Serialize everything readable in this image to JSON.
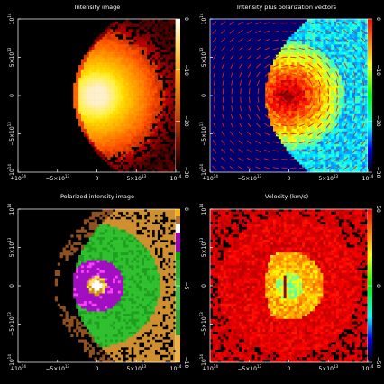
{
  "chart_data": [
    {
      "type": "heatmap",
      "title": "Intensity image",
      "colormap": "hot",
      "colorbar": {
        "ticks": [
          0,
          -10,
          -20,
          -30
        ],
        "labels": [
          "0",
          "−10",
          "−20",
          "−30"
        ],
        "range": [
          -30,
          0
        ]
      },
      "xticks": [
        -100000000000000.0,
        -50000000000000.0,
        0,
        50000000000000.0,
        100000000000000.0
      ],
      "yticks": [
        -100000000000000.0,
        -50000000000000.0,
        0,
        50000000000000.0,
        100000000000000.0
      ],
      "xlim": [
        -100000000000000.0,
        100000000000000.0
      ],
      "ylim": [
        -100000000000000.0,
        100000000000000.0
      ]
    },
    {
      "type": "heatmap",
      "title": "Intensity plus polarization vectors",
      "colormap": "jet",
      "overlay": "polarization vectors",
      "colorbar": {
        "ticks": [
          0,
          -10,
          -20,
          -30
        ],
        "labels": [
          "0",
          "−10",
          "−20",
          "−30"
        ],
        "range": [
          -30,
          0
        ]
      },
      "xticks": [
        -100000000000000.0,
        -50000000000000.0,
        0,
        50000000000000.0,
        100000000000000.0
      ],
      "yticks": [
        -100000000000000.0,
        -50000000000000.0,
        0,
        50000000000000.0,
        100000000000000.0
      ],
      "xlim": [
        -100000000000000.0,
        100000000000000.0
      ],
      "ylim": [
        -100000000000000.0,
        100000000000000.0
      ]
    },
    {
      "type": "heatmap",
      "title": "Polarized intensity image",
      "colormap": "discrete",
      "colorbar": {
        "ticks": [
          0,
          -5,
          -10
        ],
        "labels": [
          "0",
          "−5",
          "−10"
        ],
        "range": [
          -10,
          0
        ]
      },
      "xticks": [
        -100000000000000.0,
        -50000000000000.0,
        0,
        50000000000000.0,
        100000000000000.0
      ],
      "yticks": [
        -100000000000000.0,
        -50000000000000.0,
        0,
        50000000000000.0,
        100000000000000.0
      ],
      "xlim": [
        -100000000000000.0,
        100000000000000.0
      ],
      "ylim": [
        -100000000000000.0,
        100000000000000.0
      ]
    },
    {
      "type": "heatmap",
      "title": "Velocity (km/s)",
      "colormap": "jet",
      "colorbar": {
        "ticks": [
          50,
          0,
          -50
        ],
        "labels": [
          "50",
          "0",
          "−50"
        ],
        "range": [
          -50,
          50
        ]
      },
      "xticks": [
        -100000000000000.0,
        -50000000000000.0,
        0,
        50000000000000.0,
        100000000000000.0
      ],
      "yticks": [
        -100000000000000.0,
        -50000000000000.0,
        0,
        50000000000000.0,
        100000000000000.0
      ],
      "xlim": [
        -100000000000000.0,
        100000000000000.0
      ],
      "ylim": [
        -100000000000000.0,
        100000000000000.0
      ]
    }
  ]
}
